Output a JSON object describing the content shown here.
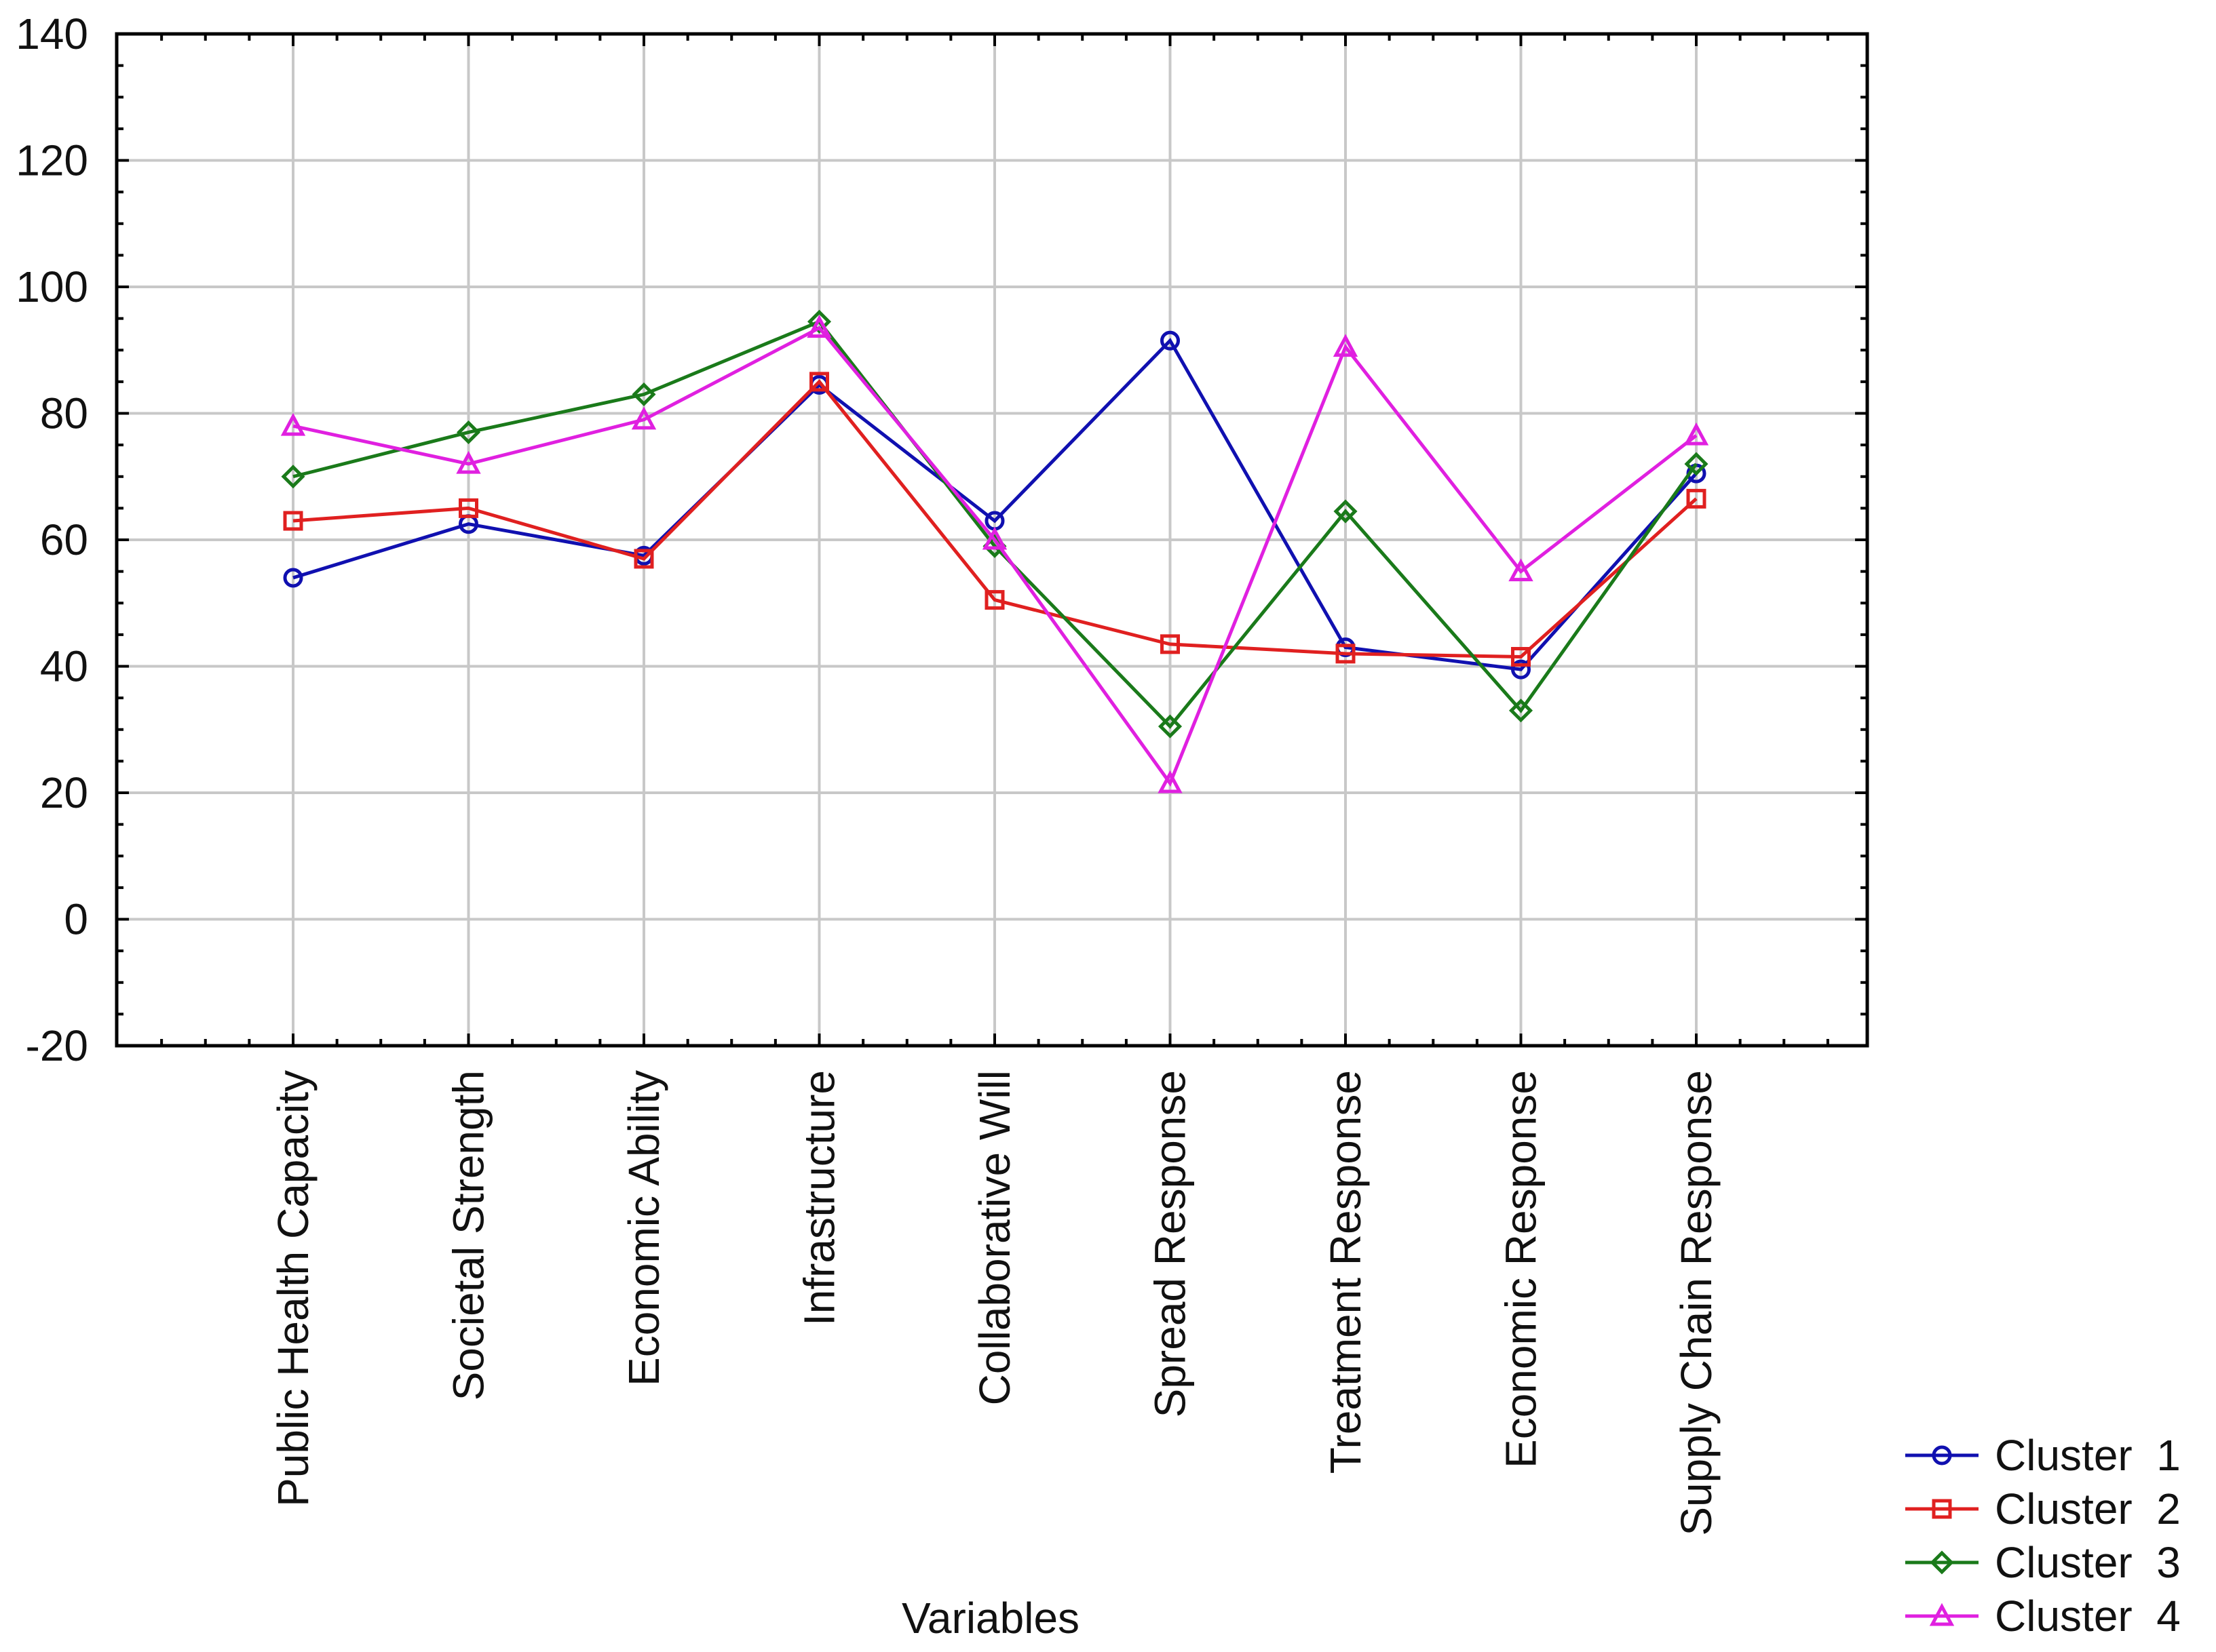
{
  "chart_data": {
    "type": "line",
    "title": "",
    "xlabel": "Variables",
    "ylabel": "",
    "ylim": [
      -20,
      140
    ],
    "yticks": [
      -20,
      0,
      20,
      40,
      60,
      80,
      100,
      120,
      140
    ],
    "grid": true,
    "legend_position": "bottom-right",
    "categories": [
      "Public Health Capacity",
      "Societal Strength",
      "Economic Ability",
      "Infrastructure",
      "Collaborative Will",
      "Spread Response",
      "Treatment Response",
      "Economic Response",
      "Supply Chain Response"
    ],
    "series": [
      {
        "name": "Cluster  1",
        "color": "#1010b0",
        "marker": "circle",
        "values": [
          54,
          62.5,
          57.5,
          84.5,
          63,
          91.5,
          43,
          39.5,
          70.5
        ]
      },
      {
        "name": "Cluster  2",
        "color": "#e02020",
        "marker": "square",
        "values": [
          63,
          65,
          57,
          85,
          50.5,
          43.5,
          42,
          41.5,
          66.5
        ]
      },
      {
        "name": "Cluster  3",
        "color": "#1a7a1a",
        "marker": "diamond",
        "values": [
          70,
          77,
          83,
          94.5,
          59,
          30.5,
          64.5,
          33,
          72
        ]
      },
      {
        "name": "Cluster  4",
        "color": "#e020e0",
        "marker": "triangle",
        "values": [
          78,
          72,
          79,
          93.5,
          60,
          21.5,
          90.5,
          55,
          76.5
        ]
      }
    ]
  }
}
